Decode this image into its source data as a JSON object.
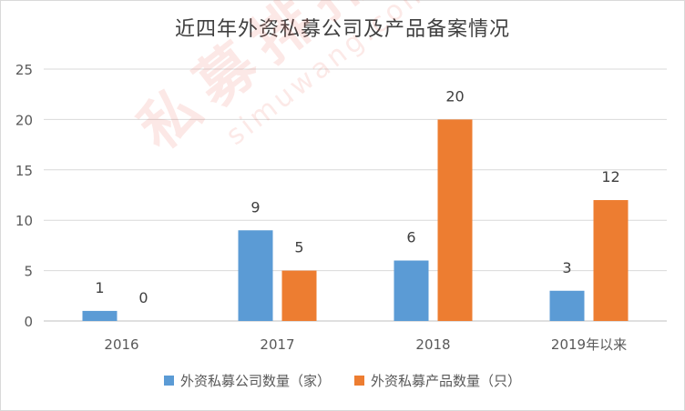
{
  "chart_data": {
    "type": "bar",
    "title": "近四年外资私募公司及产品备案情况",
    "categories": [
      "2016",
      "2017",
      "2018",
      "2019年以来"
    ],
    "series": [
      {
        "name": "外资私募公司数量（家）",
        "color": "#5b9bd5",
        "values": [
          1,
          9,
          6,
          3
        ]
      },
      {
        "name": "外资私募产品数量（只）",
        "color": "#ed7d31",
        "values": [
          0,
          5,
          20,
          12
        ]
      }
    ],
    "ylim": [
      0,
      25
    ],
    "yticks": [
      0,
      5,
      10,
      15,
      20,
      25
    ],
    "grid": true,
    "legend": "bottom",
    "data_labels": true
  },
  "watermark": {
    "text": "私募排排网",
    "url": "simuwang.com"
  }
}
